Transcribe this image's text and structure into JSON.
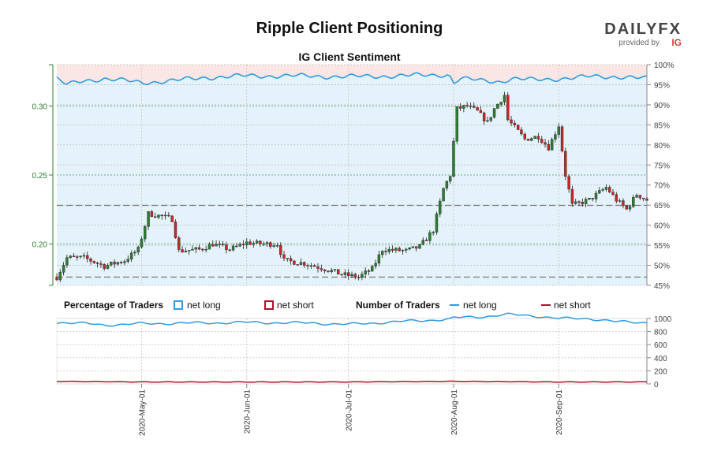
{
  "header": {
    "title": "Ripple Client Positioning",
    "logo_text": "DAILYFX",
    "logo_sub": "provided by",
    "logo_brand": "IG"
  },
  "colors": {
    "long": "#2f9be0",
    "short": "#b0102a",
    "up_candle": "#2e7d32",
    "down_candle": "#c62828",
    "price_axis": "#2e7d32",
    "shade_long": "#e4f2fb",
    "shade_short": "#fbe6e6"
  },
  "chart_data": [
    {
      "type": "candlestick",
      "title": "IG Client Sentiment",
      "y_left_ticks": [
        "0.20",
        "0.25",
        "0.30"
      ],
      "y_left_lim": [
        0.17,
        0.33
      ],
      "y_right_ticks": [
        "45%",
        "50%",
        "55%",
        "60%",
        "65%",
        "70%",
        "75%",
        "80%",
        "85%",
        "90%",
        "95%",
        "100%"
      ],
      "y_right_lim": [
        45,
        100
      ],
      "x_date_range": [
        "2020-04-06",
        "2020-09-27"
      ],
      "x_ticks": [
        "2020-May-01",
        "2020-Jun-01",
        "2020-Jul-01",
        "2020-Aug-01",
        "2020-Sep-01"
      ],
      "reference_lines": [
        0.176,
        0.228
      ],
      "price_anchors": [
        [
          "2020-04-06",
          0.176
        ],
        [
          "2020-04-09",
          0.19
        ],
        [
          "2020-04-14",
          0.19
        ],
        [
          "2020-04-20",
          0.184
        ],
        [
          "2020-04-26",
          0.188
        ],
        [
          "2020-04-30",
          0.196
        ],
        [
          "2020-05-03",
          0.222
        ],
        [
          "2020-05-07",
          0.22
        ],
        [
          "2020-05-10",
          0.218
        ],
        [
          "2020-05-12",
          0.195
        ],
        [
          "2020-05-18",
          0.196
        ],
        [
          "2020-05-22",
          0.2
        ],
        [
          "2020-05-27",
          0.196
        ],
        [
          "2020-06-01",
          0.201
        ],
        [
          "2020-06-06",
          0.2
        ],
        [
          "2020-06-10",
          0.2
        ],
        [
          "2020-06-12",
          0.188
        ],
        [
          "2020-06-18",
          0.186
        ],
        [
          "2020-06-24",
          0.182
        ],
        [
          "2020-06-29",
          0.178
        ],
        [
          "2020-07-04",
          0.176
        ],
        [
          "2020-07-08",
          0.182
        ],
        [
          "2020-07-11",
          0.196
        ],
        [
          "2020-07-18",
          0.195
        ],
        [
          "2020-07-22",
          0.198
        ],
        [
          "2020-07-26",
          0.21
        ],
        [
          "2020-07-29",
          0.24
        ],
        [
          "2020-07-31",
          0.25
        ],
        [
          "2020-08-02",
          0.298
        ],
        [
          "2020-08-05",
          0.3
        ],
        [
          "2020-08-08",
          0.296
        ],
        [
          "2020-08-11",
          0.288
        ],
        [
          "2020-08-13",
          0.298
        ],
        [
          "2020-08-16",
          0.308
        ],
        [
          "2020-08-17",
          0.29
        ],
        [
          "2020-08-22",
          0.276
        ],
        [
          "2020-08-26",
          0.278
        ],
        [
          "2020-08-29",
          0.27
        ],
        [
          "2020-09-01",
          0.286
        ],
        [
          "2020-09-03",
          0.25
        ],
        [
          "2020-09-05",
          0.228
        ],
        [
          "2020-09-10",
          0.232
        ],
        [
          "2020-09-15",
          0.241
        ],
        [
          "2020-09-18",
          0.232
        ],
        [
          "2020-09-21",
          0.225
        ],
        [
          "2020-09-24",
          0.236
        ],
        [
          "2020-09-27",
          0.232
        ]
      ],
      "pct_long_anchors": [
        [
          "2020-04-06",
          96.5
        ],
        [
          "2020-04-09",
          95.0
        ],
        [
          "2020-04-14",
          96.0
        ],
        [
          "2020-04-20",
          96.5
        ],
        [
          "2020-04-26",
          96.0
        ],
        [
          "2020-05-01",
          95.5
        ],
        [
          "2020-05-10",
          96.0
        ],
        [
          "2020-05-20",
          96.8
        ],
        [
          "2020-06-01",
          97.2
        ],
        [
          "2020-06-15",
          97.2
        ],
        [
          "2020-07-01",
          97.0
        ],
        [
          "2020-07-15",
          97.2
        ],
        [
          "2020-07-30",
          97.5
        ],
        [
          "2020-07-31",
          97.0
        ],
        [
          "2020-08-01",
          95.5
        ],
        [
          "2020-08-03",
          96.5
        ],
        [
          "2020-08-10",
          96.0
        ],
        [
          "2020-08-15",
          95.8
        ],
        [
          "2020-08-18",
          96.5
        ],
        [
          "2020-08-25",
          96.2
        ],
        [
          "2020-09-01",
          96.5
        ],
        [
          "2020-09-10",
          97.0
        ],
        [
          "2020-09-20",
          97.0
        ],
        [
          "2020-09-27",
          96.5
        ]
      ]
    },
    {
      "type": "line",
      "y_ticks": [
        "0",
        "200",
        "400",
        "600",
        "800",
        "1000"
      ],
      "y_lim": [
        0,
        1000
      ],
      "series": [
        {
          "name": "net long",
          "anchors": [
            [
              "2020-04-06",
              940
            ],
            [
              "2020-04-12",
              930
            ],
            [
              "2020-04-20",
              900
            ],
            [
              "2020-05-01",
              920
            ],
            [
              "2020-05-15",
              930
            ],
            [
              "2020-06-01",
              940
            ],
            [
              "2020-06-20",
              930
            ],
            [
              "2020-07-01",
              910
            ],
            [
              "2020-07-15",
              950
            ],
            [
              "2020-07-31",
              990
            ],
            [
              "2020-08-01",
              1010
            ],
            [
              "2020-08-10",
              1030
            ],
            [
              "2020-08-17",
              1060
            ],
            [
              "2020-08-25",
              1040
            ],
            [
              "2020-09-01",
              1000
            ],
            [
              "2020-09-10",
              1000
            ],
            [
              "2020-09-18",
              950
            ],
            [
              "2020-09-27",
              940
            ]
          ]
        },
        {
          "name": "net short",
          "anchors": [
            [
              "2020-04-06",
              40
            ],
            [
              "2020-05-01",
              30
            ],
            [
              "2020-06-01",
              30
            ],
            [
              "2020-07-01",
              30
            ],
            [
              "2020-08-01",
              40
            ],
            [
              "2020-09-01",
              30
            ],
            [
              "2020-09-27",
              30
            ]
          ]
        }
      ]
    }
  ],
  "legend": {
    "pct_title": "Percentage of Traders",
    "num_title": "Number of Traders",
    "long_label": "net long",
    "short_label": "net short"
  }
}
